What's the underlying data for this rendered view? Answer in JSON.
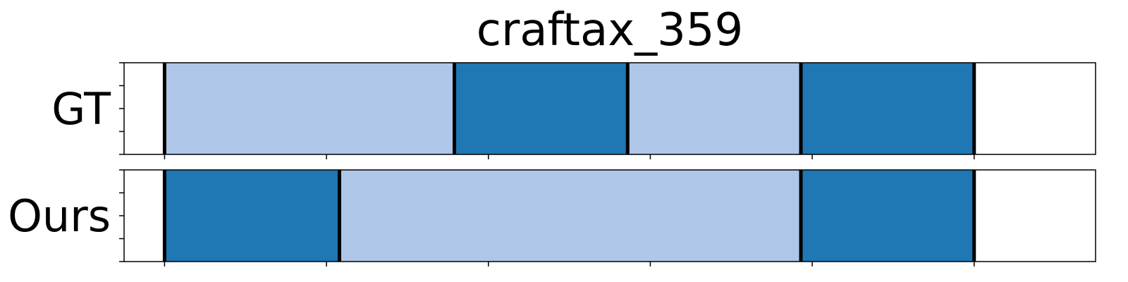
{
  "chart_data": {
    "type": "bar",
    "title": "craftax_359",
    "xlim": [
      0,
      6
    ],
    "x_ticks": [
      0.25,
      1.25,
      2.25,
      3.25,
      4.25,
      5.25
    ],
    "colors": {
      "light": "#aec7e8",
      "dark": "#1f77b4",
      "boundary": "#000000"
    },
    "rows": [
      {
        "label": "GT",
        "segments": [
          {
            "start": 0.25,
            "end": 2.04,
            "shade": "light"
          },
          {
            "start": 2.04,
            "end": 3.11,
            "shade": "dark"
          },
          {
            "start": 3.11,
            "end": 4.18,
            "shade": "light"
          },
          {
            "start": 4.18,
            "end": 5.25,
            "shade": "dark"
          }
        ]
      },
      {
        "label": "Ours",
        "segments": [
          {
            "start": 0.25,
            "end": 1.33,
            "shade": "dark"
          },
          {
            "start": 1.33,
            "end": 4.18,
            "shade": "light"
          },
          {
            "start": 4.18,
            "end": 5.25,
            "shade": "dark"
          }
        ]
      }
    ]
  }
}
